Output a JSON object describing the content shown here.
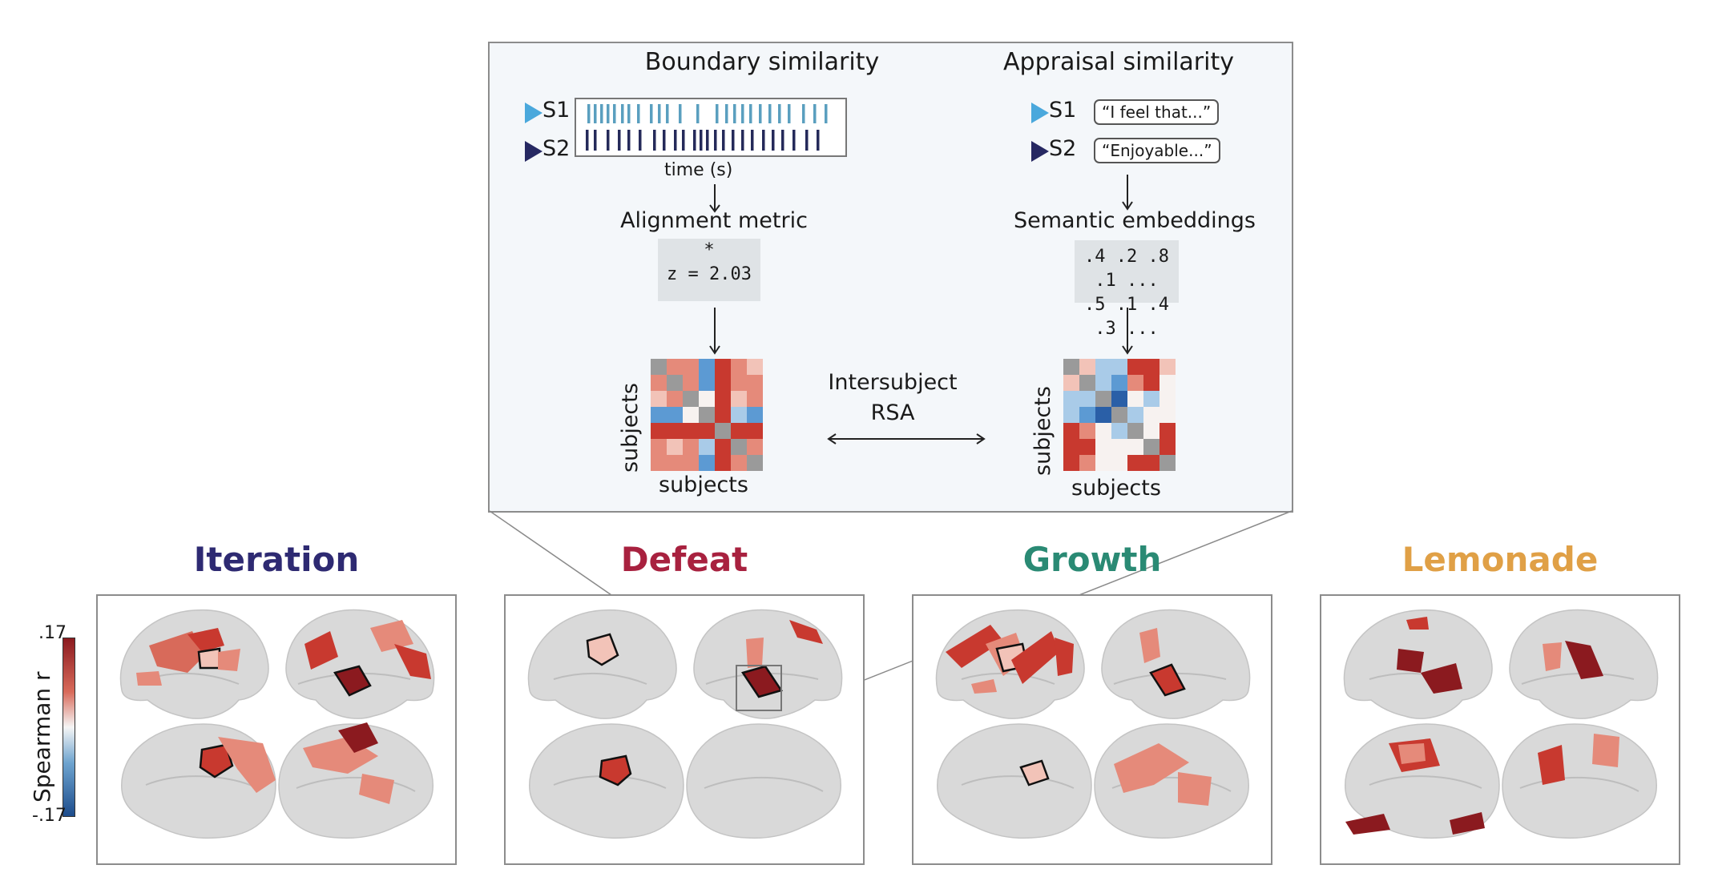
{
  "schematic": {
    "boundary": {
      "heading": "Boundary similarity",
      "s1_label": "S1",
      "s2_label": "S2",
      "time_label": "time (s)",
      "metric_label": "Alignment metric",
      "metric_star": "*",
      "metric_value": "z = 2.03",
      "matrix_ylabel": "subjects",
      "matrix_xlabel": "subjects"
    },
    "appraisal": {
      "heading": "Appraisal similarity",
      "s1_label": "S1",
      "s2_label": "S2",
      "s1_quote": "“I feel that...”",
      "s2_quote": "“Enjoyable...”",
      "embed_label": "Semantic embeddings",
      "embed_row1": ".4 .2 .8 .1 ...",
      "embed_row2": ".5 .1 .4 .3 ...",
      "matrix_ylabel": "subjects",
      "matrix_xlabel": "subjects"
    },
    "rsa_line1": "Intersubject",
    "rsa_line2": "RSA"
  },
  "colorbar": {
    "label": "Spearman r",
    "max": ".17",
    "min": "-.17"
  },
  "conditions": [
    {
      "title": "Iteration",
      "color": "#2e2a72"
    },
    {
      "title": "Defeat",
      "color": "#a8213f"
    },
    {
      "title": "Growth",
      "color": "#2a8a74"
    },
    {
      "title": "Lemonade",
      "color": "#e0a046"
    }
  ],
  "colors": {
    "s1_marker": "#4aa8dc",
    "s2_marker": "#262862",
    "s1_bars": "#5a9fbf",
    "s2_bars": "#252a5a",
    "brain_fill": "#d9d9d9"
  }
}
